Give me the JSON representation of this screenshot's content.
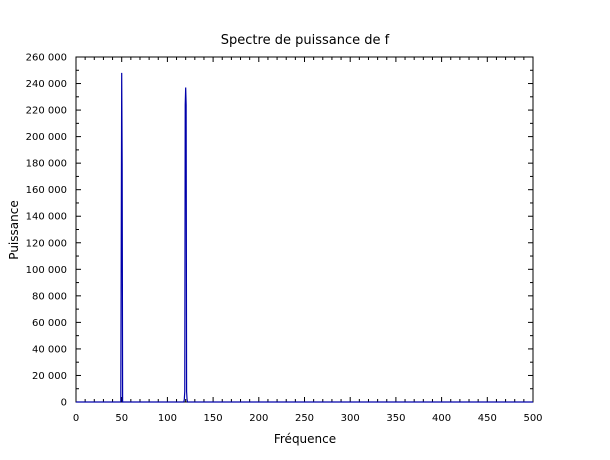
{
  "chart_data": {
    "type": "line",
    "title": "Spectre de puissance de f",
    "xlabel": "Fréquence",
    "ylabel": "Puissance",
    "xlim": [
      0,
      500
    ],
    "ylim": [
      0,
      260000
    ],
    "xticks": [
      0,
      50,
      100,
      150,
      200,
      250,
      300,
      350,
      400,
      450,
      500
    ],
    "xtick_labels": [
      "0",
      "50",
      "100",
      "150",
      "200",
      "250",
      "300",
      "350",
      "400",
      "450",
      "500"
    ],
    "yticks": [
      0,
      20000,
      40000,
      60000,
      80000,
      100000,
      120000,
      140000,
      160000,
      180000,
      200000,
      220000,
      240000,
      260000
    ],
    "ytick_labels": [
      "0",
      "20 000",
      "40 000",
      "60 000",
      "80 000",
      "100 000",
      "120 000",
      "140 000",
      "160 000",
      "180 000",
      "200 000",
      "220 000",
      "240 000",
      "260 000"
    ],
    "grid": false,
    "series": [
      {
        "color": "#0000aa",
        "points": [
          [
            0,
            0
          ],
          [
            49,
            0
          ],
          [
            49.5,
            120000
          ],
          [
            50,
            248000
          ],
          [
            50.5,
            180000
          ],
          [
            51,
            0
          ],
          [
            118,
            0
          ],
          [
            118.5,
            2000
          ],
          [
            119,
            8000
          ],
          [
            119.5,
            224000
          ],
          [
            120,
            237000
          ],
          [
            120.5,
            224000
          ],
          [
            121,
            8000
          ],
          [
            121.5,
            2000
          ],
          [
            122,
            0
          ],
          [
            500,
            0
          ]
        ]
      }
    ]
  }
}
